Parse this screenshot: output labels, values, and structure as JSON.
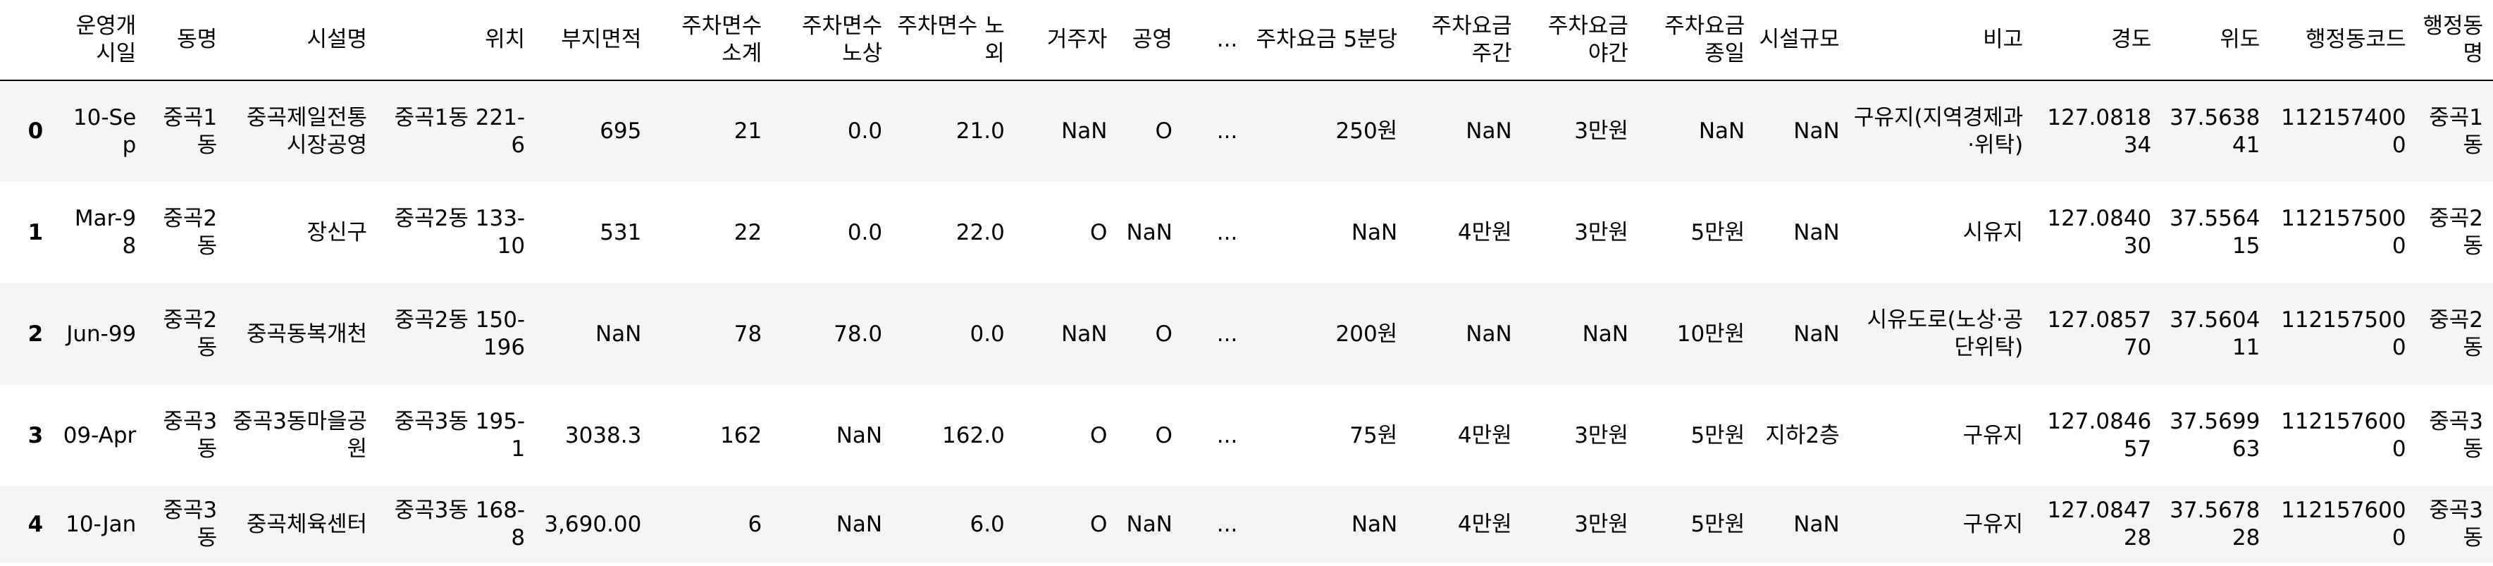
{
  "columns": [
    "운영개시일",
    "동명",
    "시설명",
    "위치",
    "부지면적",
    "주차면수 소계",
    "주차면수 노상",
    "주차면수 노외",
    "거주자",
    "공영",
    "...",
    "주차요금 5분당",
    "주차요금 주간",
    "주차요금 야간",
    "주차요금 종일",
    "시설규모",
    "비고",
    "경도",
    "위도",
    "행정동코드",
    "행정동명"
  ],
  "rows": [
    {
      "index": "0",
      "cells": [
        "10-Sep",
        "중곡1동",
        "중곡제일전통시장공영",
        "중곡1동 221-6",
        "695",
        "21",
        "0.0",
        "21.0",
        "NaN",
        "O",
        "...",
        "250원",
        "NaN",
        "3만원",
        "NaN",
        "NaN",
        "구유지(지역경제과·위탁)",
        "127.081834",
        "37.563841",
        "1121574000",
        "중곡1동"
      ]
    },
    {
      "index": "1",
      "cells": [
        "Mar-98",
        "중곡2동",
        "장신구",
        "중곡2동 133-10",
        "531",
        "22",
        "0.0",
        "22.0",
        "O",
        "NaN",
        "...",
        "NaN",
        "4만원",
        "3만원",
        "5만원",
        "NaN",
        "시유지",
        "127.084030",
        "37.556415",
        "1121575000",
        "중곡2동"
      ]
    },
    {
      "index": "2",
      "cells": [
        "Jun-99",
        "중곡2동",
        "중곡동복개천",
        "중곡2동 150-196",
        "NaN",
        "78",
        "78.0",
        "0.0",
        "NaN",
        "O",
        "...",
        "200원",
        "NaN",
        "NaN",
        "10만원",
        "NaN",
        "시유도로(노상·공단위탁)",
        "127.085770",
        "37.560411",
        "1121575000",
        "중곡2동"
      ]
    },
    {
      "index": "3",
      "cells": [
        "09-Apr",
        "중곡3동",
        "중곡3동마을공원",
        "중곡3동 195-1",
        "3038.3",
        "162",
        "NaN",
        "162.0",
        "O",
        "O",
        "...",
        "75원",
        "4만원",
        "3만원",
        "5만원",
        "지하2층",
        "구유지",
        "127.084657",
        "37.569963",
        "1121576000",
        "중곡3동"
      ]
    },
    {
      "index": "4",
      "cells": [
        "10-Jan",
        "중곡3동",
        "중곡체육센터",
        "중곡3동 168-8",
        "3,690.00",
        "6",
        "NaN",
        "6.0",
        "O",
        "NaN",
        "...",
        "NaN",
        "4만원",
        "3만원",
        "5만원",
        "NaN",
        "구유지",
        "127.084728",
        "37.567828",
        "1121576000",
        "중곡3동"
      ]
    }
  ]
}
